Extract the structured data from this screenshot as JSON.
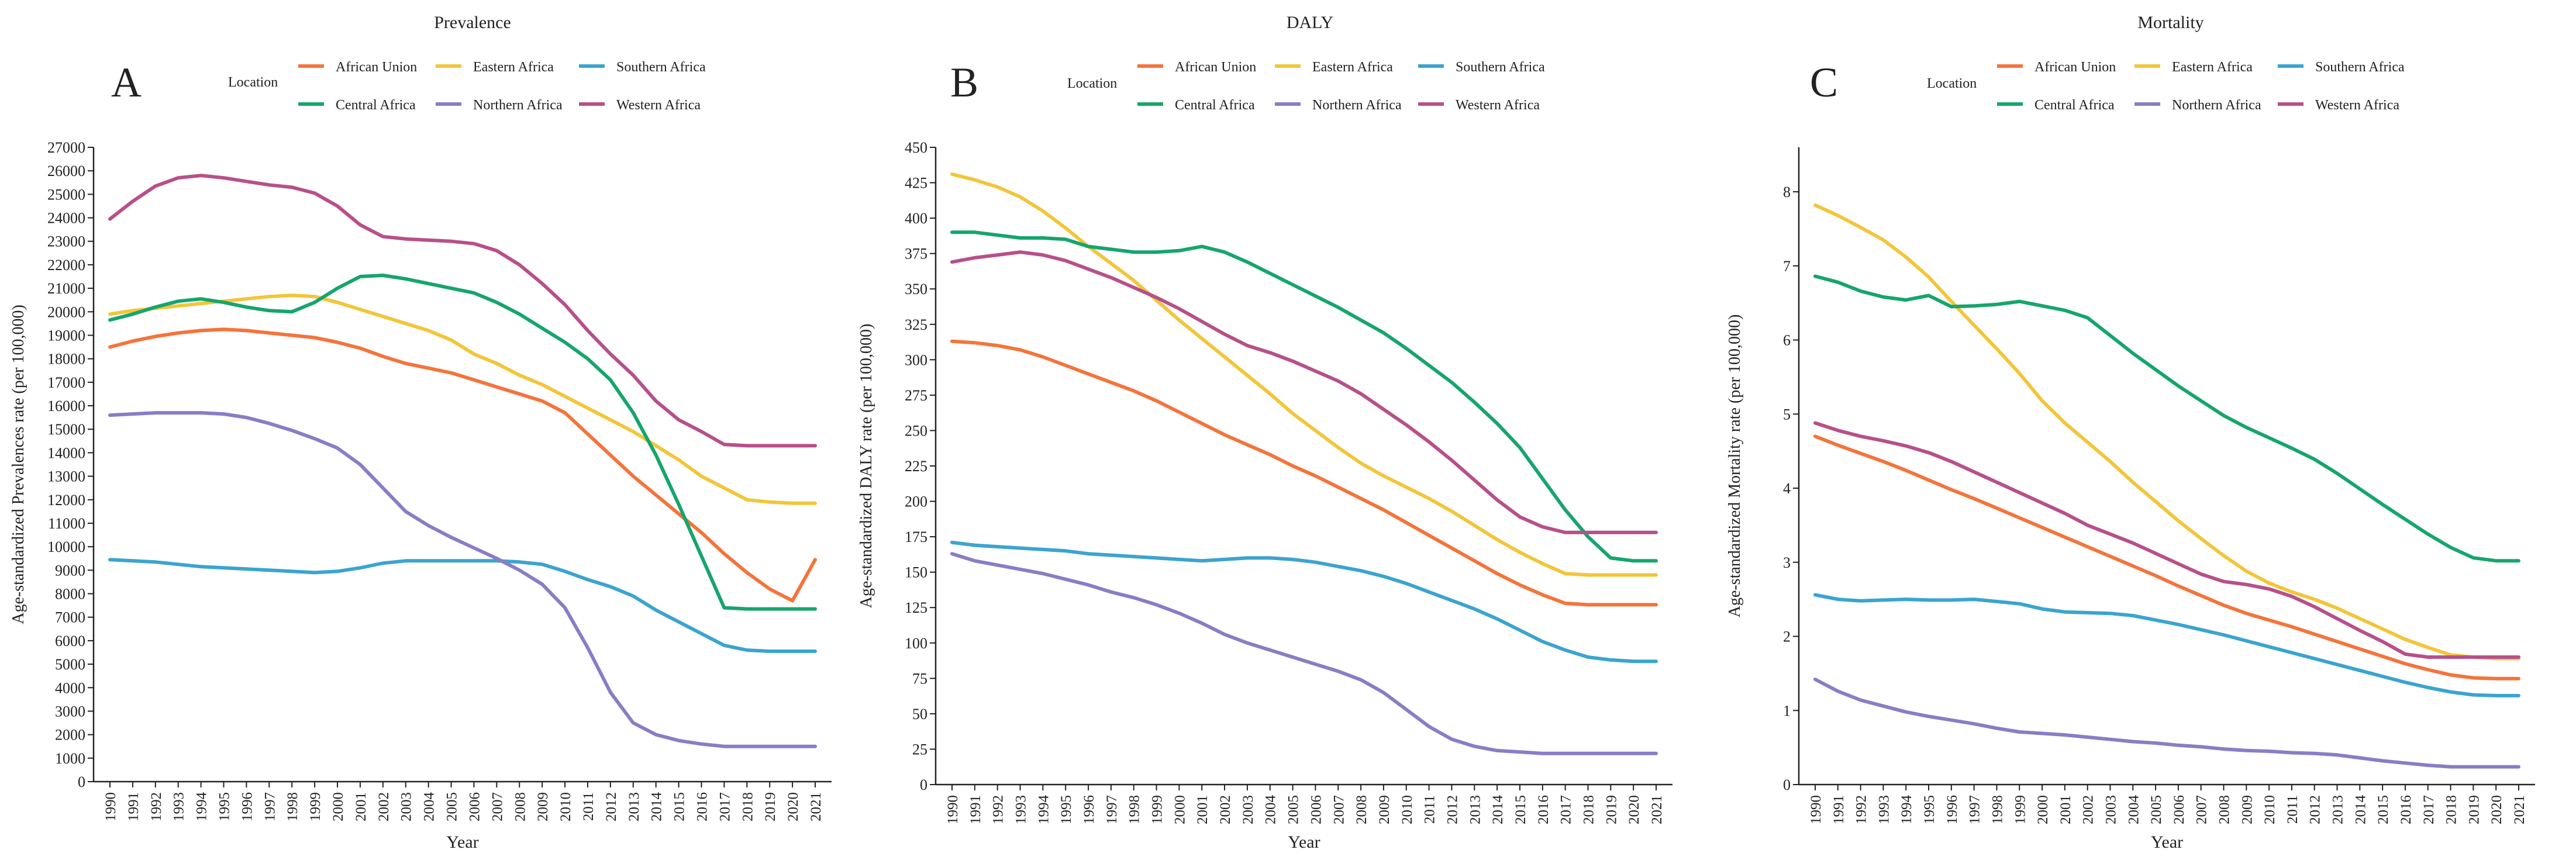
{
  "figure": {
    "years": [
      "1990",
      "1991",
      "1992",
      "1993",
      "1994",
      "1995",
      "1996",
      "1997",
      "1998",
      "1999",
      "2000",
      "2001",
      "2002",
      "2003",
      "2004",
      "2005",
      "2006",
      "2007",
      "2008",
      "2009",
      "2010",
      "2011",
      "2012",
      "2013",
      "2014",
      "2015",
      "2016",
      "2017",
      "2018",
      "2019",
      "2020",
      "2021"
    ],
    "legend_title": "Location",
    "xlabel": "Year",
    "series_names": [
      "African Union",
      "Eastern Africa",
      "Southern Africa",
      "Central Africa",
      "Northern Africa",
      "Western Africa"
    ],
    "series_colors": {
      "African Union": "#f4743b",
      "Eastern Africa": "#f2c63a",
      "Southern Africa": "#3ba4cf",
      "Central Africa": "#16a56d",
      "Northern Africa": "#8b7cc6",
      "Western Africa": "#b7508a"
    }
  },
  "chart_data": [
    {
      "type": "line",
      "panel_letter": "A",
      "title": "Prevalence",
      "xlabel": "Year",
      "ylabel": "Age-standardized Prevalences rate (per 100,000)",
      "ylim": [
        0,
        27000
      ],
      "yticks": [
        0,
        1000,
        2000,
        3000,
        4000,
        5000,
        6000,
        7000,
        8000,
        9000,
        10000,
        11000,
        12000,
        13000,
        14000,
        15000,
        16000,
        17000,
        18000,
        19000,
        20000,
        21000,
        22000,
        23000,
        24000,
        25000,
        26000,
        27000
      ],
      "legend_title": "Location",
      "legend_position": "top",
      "grid": false,
      "series": [
        {
          "name": "African Union",
          "values": [
            18500,
            18750,
            18950,
            19100,
            19200,
            19250,
            19200,
            19100,
            19000,
            18900,
            18700,
            18450,
            18100,
            17800,
            17600,
            17400,
            17100,
            16800,
            16500,
            16200,
            15700,
            14800,
            13900,
            13000,
            12200,
            11400,
            10600,
            9700,
            8900,
            8200,
            7700,
            9450
          ]
        },
        {
          "name": "Eastern Africa",
          "values": [
            19900,
            20050,
            20150,
            20250,
            20350,
            20450,
            20550,
            20650,
            20700,
            20650,
            20400,
            20100,
            19800,
            19500,
            19200,
            18800,
            18200,
            17800,
            17300,
            16900,
            16400,
            15900,
            15400,
            14900,
            14300,
            13700,
            13000,
            12500,
            12000,
            11900,
            11850,
            11850
          ]
        },
        {
          "name": "Southern Africa",
          "values": [
            9450,
            9400,
            9350,
            9250,
            9150,
            9100,
            9050,
            9000,
            8950,
            8900,
            8950,
            9100,
            9300,
            9400,
            9400,
            9400,
            9400,
            9400,
            9350,
            9250,
            8950,
            8600,
            8300,
            7900,
            7300,
            6800,
            6300,
            5800,
            5600,
            5550,
            5550,
            5550
          ]
        },
        {
          "name": "Central Africa",
          "values": [
            19650,
            19900,
            20200,
            20450,
            20550,
            20400,
            20200,
            20050,
            20000,
            20400,
            21000,
            21500,
            21550,
            21400,
            21200,
            21000,
            20800,
            20400,
            19900,
            19300,
            18700,
            18000,
            17100,
            15700,
            13900,
            11800,
            9600,
            7400,
            7350,
            7350,
            7350,
            7350
          ]
        },
        {
          "name": "Northern Africa",
          "values": [
            15600,
            15650,
            15700,
            15700,
            15700,
            15650,
            15500,
            15250,
            14950,
            14600,
            14200,
            13500,
            12500,
            11500,
            10900,
            10400,
            9950,
            9500,
            9000,
            8400,
            7400,
            5700,
            3800,
            2500,
            2000,
            1750,
            1600,
            1500,
            1500,
            1500,
            1500,
            1500
          ]
        },
        {
          "name": "Western Africa",
          "values": [
            23950,
            24700,
            25350,
            25700,
            25800,
            25700,
            25550,
            25400,
            25300,
            25050,
            24500,
            23700,
            23200,
            23100,
            23050,
            23000,
            22900,
            22600,
            22000,
            21200,
            20300,
            19200,
            18200,
            17300,
            16200,
            15400,
            14900,
            14350,
            14300,
            14300,
            14300,
            14300
          ]
        }
      ]
    },
    {
      "type": "line",
      "panel_letter": "B",
      "title": "DALY",
      "xlabel": "Year",
      "ylabel": "Age-standardized DALY rate (per 100,000)",
      "ylim": [
        0,
        450
      ],
      "yticks": [
        0,
        25,
        50,
        75,
        100,
        125,
        150,
        175,
        200,
        225,
        250,
        275,
        300,
        325,
        350,
        375,
        400,
        425,
        450
      ],
      "legend_title": "Location",
      "legend_position": "top",
      "grid": false,
      "series": [
        {
          "name": "African Union",
          "values": [
            313,
            312,
            310,
            307,
            302,
            296,
            290,
            284,
            278,
            271,
            263,
            255,
            247,
            240,
            233,
            225,
            218,
            210,
            202,
            194,
            185,
            176,
            167,
            158,
            149,
            141,
            134,
            128,
            127,
            127,
            127,
            127
          ]
        },
        {
          "name": "Eastern Africa",
          "values": [
            431,
            427,
            422,
            415,
            405,
            393,
            380,
            368,
            356,
            342,
            328,
            315,
            302,
            289,
            276,
            262,
            250,
            238,
            227,
            218,
            210,
            202,
            193,
            183,
            173,
            164,
            156,
            149,
            148,
            148,
            148,
            148
          ]
        },
        {
          "name": "Southern Africa",
          "values": [
            171,
            169,
            168,
            167,
            166,
            165,
            163,
            162,
            161,
            160,
            159,
            158,
            159,
            160,
            160,
            159,
            157,
            154,
            151,
            147,
            142,
            136,
            130,
            124,
            117,
            109,
            101,
            95,
            90,
            88,
            87,
            87
          ]
        },
        {
          "name": "Central Africa",
          "values": [
            390,
            390,
            388,
            386,
            386,
            385,
            380,
            378,
            376,
            376,
            377,
            380,
            376,
            369,
            361,
            353,
            345,
            337,
            328,
            319,
            308,
            296,
            284,
            270,
            255,
            238,
            216,
            194,
            175,
            160,
            158,
            158
          ]
        },
        {
          "name": "Northern Africa",
          "values": [
            163,
            158,
            155,
            152,
            149,
            145,
            141,
            136,
            132,
            127,
            121,
            114,
            106,
            100,
            95,
            90,
            85,
            80,
            74,
            65,
            53,
            41,
            32,
            27,
            24,
            23,
            22,
            22,
            22,
            22,
            22,
            22
          ]
        },
        {
          "name": "Western Africa",
          "values": [
            369,
            372,
            374,
            376,
            374,
            370,
            364,
            358,
            351,
            344,
            336,
            327,
            318,
            310,
            305,
            299,
            292,
            285,
            276,
            265,
            254,
            242,
            229,
            215,
            201,
            189,
            182,
            178,
            178,
            178,
            178,
            178
          ]
        }
      ]
    },
    {
      "type": "line",
      "panel_letter": "C",
      "title": "Mortality",
      "xlabel": "Year",
      "ylabel": "Age-standardized Mortality rate (per 100,000)",
      "ylim": [
        0,
        8.6
      ],
      "yticks": [
        0,
        1,
        2,
        3,
        4,
        5,
        6,
        7,
        8
      ],
      "legend_title": "Location",
      "legend_position": "top",
      "grid": false,
      "series": [
        {
          "name": "African Union",
          "values": [
            4.7,
            4.58,
            4.47,
            4.36,
            4.24,
            4.11,
            3.98,
            3.86,
            3.73,
            3.6,
            3.47,
            3.34,
            3.21,
            3.08,
            2.95,
            2.82,
            2.68,
            2.55,
            2.42,
            2.31,
            2.22,
            2.13,
            2.03,
            1.93,
            1.83,
            1.73,
            1.63,
            1.55,
            1.48,
            1.44,
            1.43,
            1.43
          ]
        },
        {
          "name": "Eastern Africa",
          "values": [
            7.82,
            7.68,
            7.52,
            7.35,
            7.12,
            6.85,
            6.52,
            6.2,
            5.88,
            5.55,
            5.18,
            4.88,
            4.62,
            4.36,
            4.08,
            3.82,
            3.56,
            3.32,
            3.09,
            2.88,
            2.72,
            2.6,
            2.5,
            2.38,
            2.24,
            2.1,
            1.96,
            1.85,
            1.75,
            1.72,
            1.7,
            1.7
          ]
        },
        {
          "name": "Southern Africa",
          "values": [
            2.56,
            2.5,
            2.48,
            2.49,
            2.5,
            2.49,
            2.49,
            2.5,
            2.47,
            2.44,
            2.37,
            2.33,
            2.32,
            2.31,
            2.28,
            2.22,
            2.16,
            2.09,
            2.02,
            1.94,
            1.86,
            1.78,
            1.7,
            1.62,
            1.54,
            1.46,
            1.38,
            1.31,
            1.25,
            1.21,
            1.2,
            1.2
          ]
        },
        {
          "name": "Central Africa",
          "values": [
            6.86,
            6.78,
            6.66,
            6.58,
            6.54,
            6.6,
            6.45,
            6.46,
            6.48,
            6.52,
            6.46,
            6.4,
            6.3,
            6.06,
            5.82,
            5.6,
            5.38,
            5.18,
            4.98,
            4.82,
            4.68,
            4.54,
            4.39,
            4.2,
            3.99,
            3.78,
            3.58,
            3.38,
            3.2,
            3.06,
            3.02,
            3.02
          ]
        },
        {
          "name": "Northern Africa",
          "values": [
            1.42,
            1.26,
            1.14,
            1.06,
            0.98,
            0.92,
            0.87,
            0.82,
            0.76,
            0.71,
            0.69,
            0.67,
            0.64,
            0.61,
            0.58,
            0.56,
            0.53,
            0.51,
            0.48,
            0.46,
            0.45,
            0.43,
            0.42,
            0.4,
            0.36,
            0.32,
            0.29,
            0.26,
            0.24,
            0.24,
            0.24,
            0.24
          ]
        },
        {
          "name": "Western Africa",
          "values": [
            4.88,
            4.78,
            4.7,
            4.64,
            4.57,
            4.48,
            4.36,
            4.22,
            4.08,
            3.94,
            3.8,
            3.66,
            3.5,
            3.38,
            3.26,
            3.12,
            2.98,
            2.84,
            2.74,
            2.7,
            2.64,
            2.54,
            2.4,
            2.24,
            2.08,
            1.93,
            1.76,
            1.72,
            1.72,
            1.72,
            1.72,
            1.72
          ]
        }
      ]
    }
  ]
}
